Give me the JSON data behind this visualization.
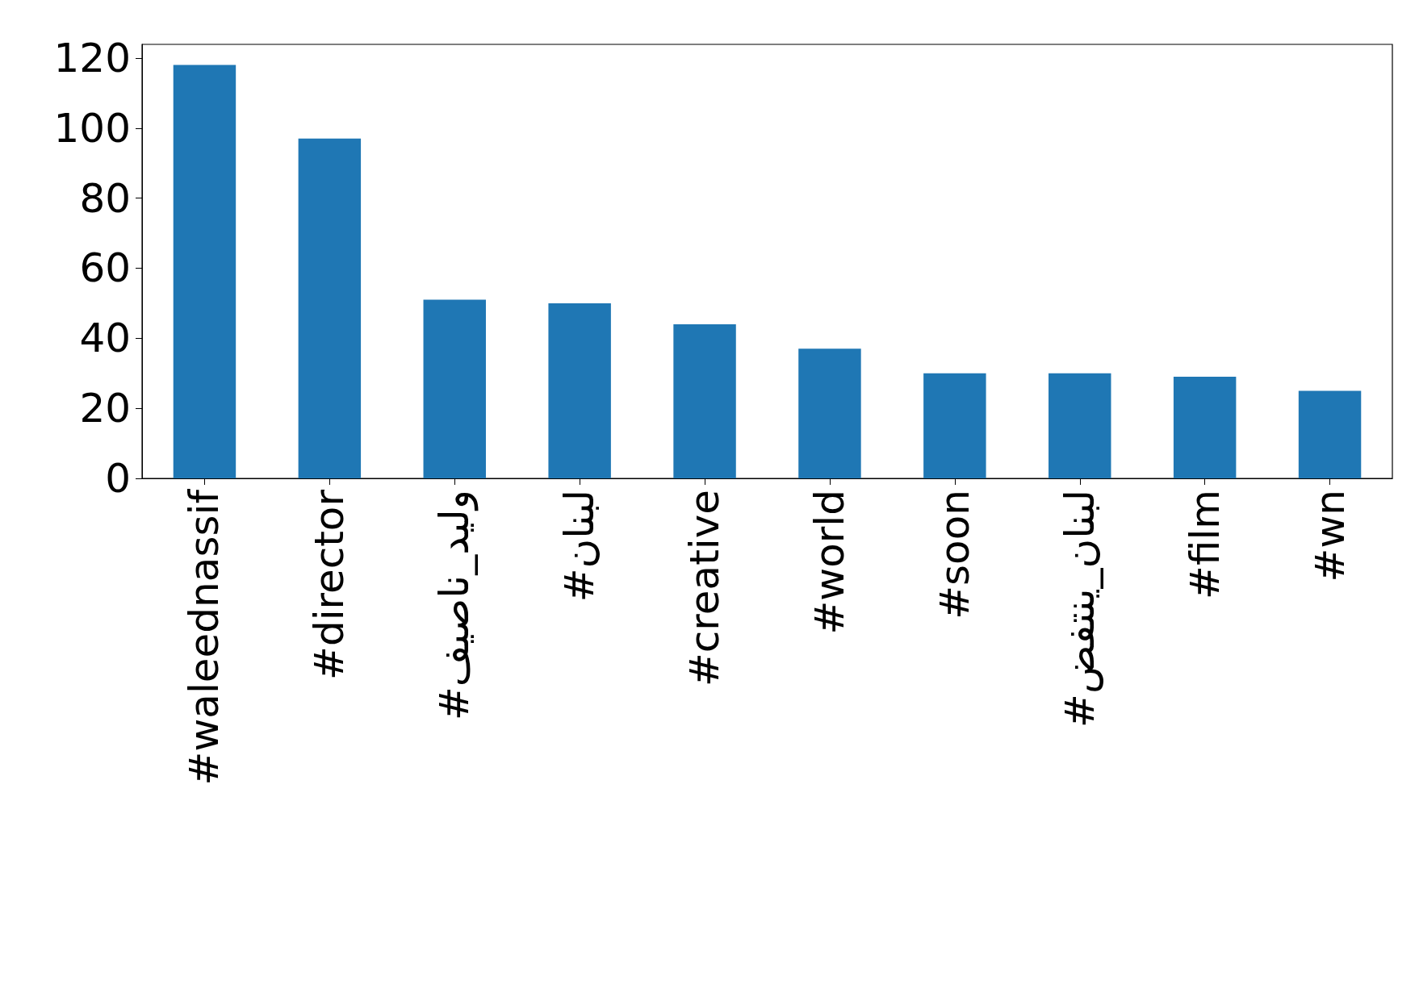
{
  "chart_data": {
    "type": "bar",
    "categories": [
      "#waleednassif",
      "#director",
      "#وليد_ناصيف",
      "#لبنان",
      "#creative",
      "#world",
      "#soon",
      "#لبنان_ينتفض",
      "#film",
      "#wn"
    ],
    "values": [
      118,
      97,
      51,
      50,
      44,
      37,
      30,
      30,
      29,
      25
    ],
    "color": "#1f77b4",
    "ylim": [
      0,
      123.9
    ],
    "yticks": [
      0,
      20,
      40,
      60,
      80,
      100,
      120
    ],
    "grid": false
  }
}
